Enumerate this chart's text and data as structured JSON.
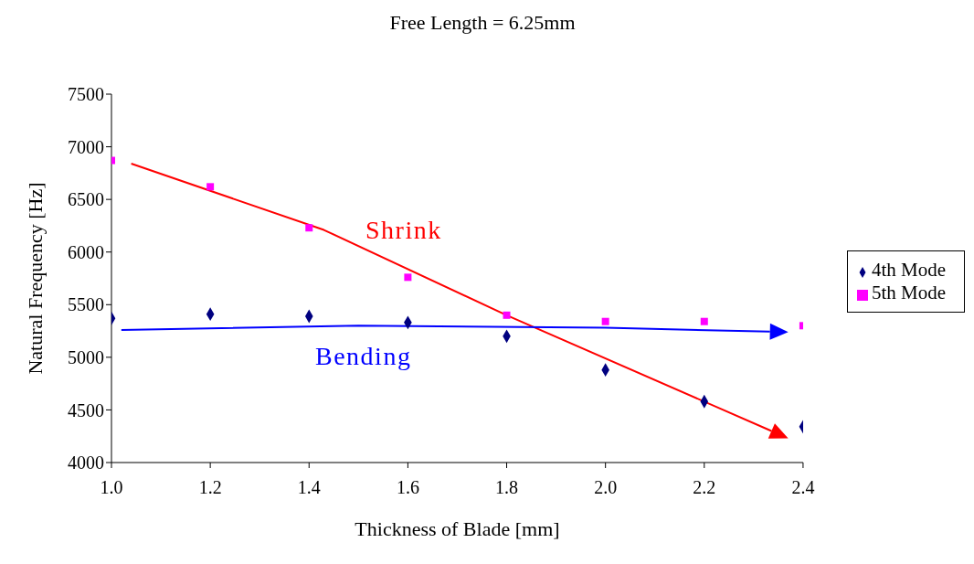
{
  "chart_data": {
    "type": "scatter",
    "title": "Free Length = 6.25mm",
    "xlabel": "Thickness of Blade [mm]",
    "ylabel": "Natural Frequency [Hz]",
    "annotations": [
      "Shrink",
      "Bending"
    ],
    "x": [
      1.0,
      1.2,
      1.4,
      1.6,
      1.8,
      2.0,
      2.2,
      2.4
    ],
    "series": [
      {
        "name": "4th Mode",
        "color": "#000080",
        "marker": "diamond",
        "values": [
          5370,
          5410,
          5390,
          5330,
          5200,
          4880,
          4580,
          4340
        ]
      },
      {
        "name": "5th Mode",
        "color": "#ff00ff",
        "marker": "square",
        "values": [
          6870,
          6620,
          6230,
          5760,
          5400,
          5340,
          5340,
          5300
        ]
      }
    ],
    "xlim": [
      1.0,
      2.4
    ],
    "xticks": [
      {
        "value": 1.0,
        "label": "1.0"
      },
      {
        "value": 1.2,
        "label": "1.2"
      },
      {
        "value": 1.4,
        "label": "1.4"
      },
      {
        "value": 1.6,
        "label": "1.6"
      },
      {
        "value": 1.8,
        "label": "1.8"
      },
      {
        "value": 2.0,
        "label": "2.0"
      },
      {
        "value": 2.2,
        "label": "2.2"
      },
      {
        "value": 2.4,
        "label": "2.4"
      }
    ],
    "ylim": [
      4000,
      7500
    ],
    "yticks": [
      4000,
      4500,
      5000,
      5500,
      6000,
      6500,
      7000,
      7500
    ],
    "grid": false,
    "legend": "right"
  }
}
